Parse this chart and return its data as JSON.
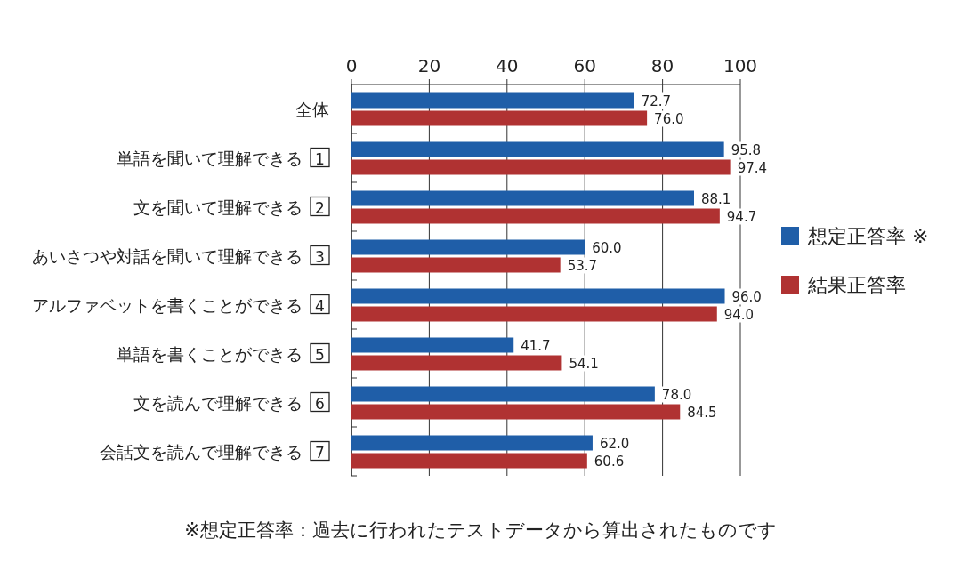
{
  "chart_data": {
    "type": "bar",
    "orientation": "horizontal",
    "categories": [
      "全体",
      "単語を聞いて理解できる 1",
      "文を聞いて理解できる 2",
      "あいさつや対話を聞いて理解できる 3",
      "アルファベットを書くことができる 4",
      "単語を書くことができる 5",
      "文を読んで理解できる 6",
      "会話文を読んで理解できる 7"
    ],
    "series": [
      {
        "name": "想定正答率 ※",
        "color": "#1f5ea8",
        "values": [
          72.7,
          95.8,
          88.1,
          60.0,
          96.0,
          41.7,
          78.0,
          62.0
        ],
        "value_labels": [
          "72.7",
          "95.8",
          "88.1",
          "60.0",
          "96.0",
          "41.7",
          "78.0",
          "62.0"
        ]
      },
      {
        "name": "結果正答率",
        "color": "#b03232",
        "values": [
          76.0,
          97.4,
          94.7,
          53.7,
          94.0,
          54.1,
          84.5,
          60.6
        ],
        "value_labels": [
          "76.0",
          "97.4",
          "94.7",
          "53.7",
          "94.0",
          "54.1",
          "84.5",
          "60.6"
        ]
      }
    ],
    "xlim": [
      0,
      100
    ],
    "xticks": [
      0,
      20,
      40,
      60,
      80,
      100
    ],
    "grid": "x",
    "legend": "right",
    "annotations": [
      "※想定正答率：過去に行われたテストデータから算出されたものです"
    ]
  }
}
